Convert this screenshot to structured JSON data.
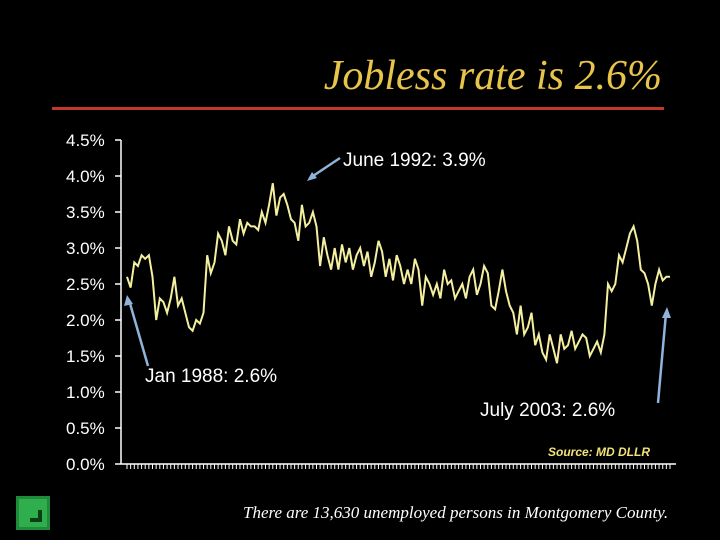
{
  "slide": {
    "title": "Jobless rate is 2.6%",
    "footnote": "There are 13,630 unemployed persons in Montgomery County.",
    "source": "Source: MD DLLR"
  },
  "colors": {
    "title": "#e8c54a",
    "rule": "#c0392b",
    "line": "#f5f0a0",
    "axis": "#ffffff"
  },
  "chart_data": {
    "type": "line",
    "title": "",
    "xlabel": "",
    "ylabel": "",
    "ylim": [
      0,
      4.5
    ],
    "yticks": [
      "0.0%",
      "0.5%",
      "1.0%",
      "1.5%",
      "2.0%",
      "2.5%",
      "3.0%",
      "3.5%",
      "4.0%",
      "4.5%"
    ],
    "x_start": "1988-01",
    "x_end": "2003-07",
    "grid": false,
    "legend": "none",
    "series": [
      {
        "values": [
          2.6,
          2.45,
          2.8,
          2.75,
          2.9,
          2.85,
          2.9,
          2.6,
          2.0,
          2.3,
          2.25,
          2.1,
          2.3,
          2.6,
          2.2,
          2.3,
          2.1,
          1.9,
          1.85,
          2.0,
          1.95,
          2.1,
          2.9,
          2.65,
          2.8,
          3.2,
          3.1,
          2.9,
          3.3,
          3.1,
          3.05,
          3.4,
          3.2,
          3.35,
          3.3,
          3.3,
          3.25,
          3.5,
          3.35,
          3.6,
          3.9,
          3.45,
          3.7,
          3.75,
          3.6,
          3.4,
          3.35,
          3.1,
          3.6,
          3.3,
          3.35,
          3.5,
          3.3,
          2.75,
          3.15,
          2.9,
          2.7,
          3.0,
          2.7,
          3.05,
          2.8,
          3.0,
          2.7,
          2.9,
          3.0,
          2.75,
          2.95,
          2.6,
          2.8,
          3.1,
          2.95,
          2.6,
          2.85,
          2.55,
          2.9,
          2.75,
          2.5,
          2.7,
          2.5,
          2.85,
          2.7,
          2.2,
          2.6,
          2.5,
          2.35,
          2.5,
          2.3,
          2.7,
          2.5,
          2.55,
          2.3,
          2.4,
          2.5,
          2.3,
          2.6,
          2.7,
          2.35,
          2.5,
          2.75,
          2.65,
          2.2,
          2.15,
          2.4,
          2.7,
          2.4,
          2.2,
          2.1,
          1.8,
          2.2,
          1.8,
          1.9,
          2.1,
          1.65,
          1.8,
          1.55,
          1.45,
          1.8,
          1.6,
          1.4,
          1.8,
          1.6,
          1.65,
          1.85,
          1.6,
          1.7,
          1.8,
          1.75,
          1.5,
          1.6,
          1.7,
          1.55,
          1.8,
          2.5,
          2.4,
          2.5,
          2.9,
          2.8,
          3.0,
          3.2,
          3.3,
          3.1,
          2.7,
          2.65,
          2.5,
          2.2,
          2.5,
          2.7,
          2.55,
          2.6,
          2.6
        ]
      }
    ],
    "annotations": [
      {
        "text": "June 1992: 3.9%",
        "x": "1992-06",
        "y": 3.9
      },
      {
        "text": "Jan 1988: 2.6%",
        "x": "1988-01",
        "y": 2.6
      },
      {
        "text": "July 2003: 2.6%",
        "x": "2003-07",
        "y": 2.6
      }
    ]
  }
}
